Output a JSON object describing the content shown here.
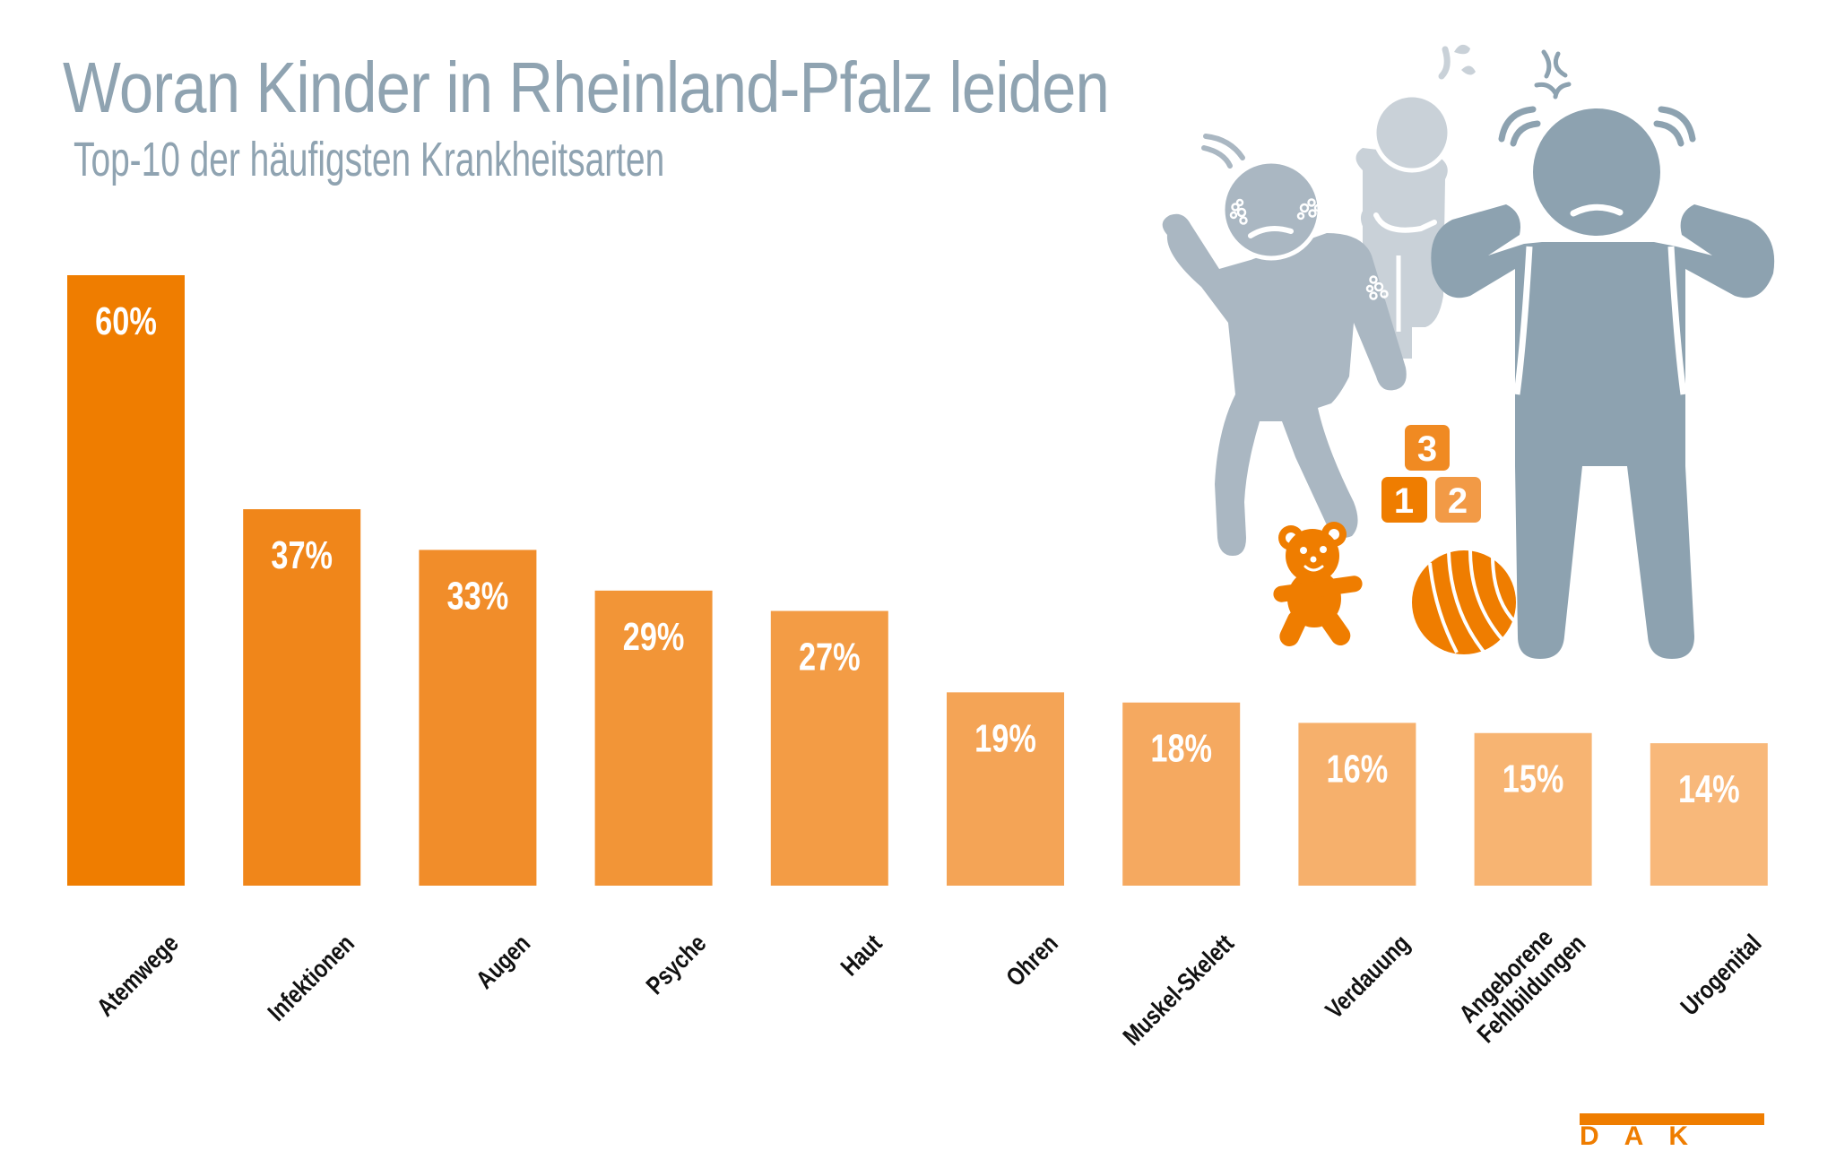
{
  "header": {
    "title": "Woran Kinder in Rheinland-Pfalz leiden",
    "subtitle": "Top-10 der häufigsten Krankheitsarten"
  },
  "chart_data": {
    "type": "bar",
    "title": "Woran Kinder in Rheinland-Pfalz leiden",
    "subtitle": "Top-10 der häufigsten Krankheitsarten",
    "xlabel": "",
    "ylabel": "",
    "ylim": [
      0,
      60
    ],
    "grid": false,
    "legend": "none",
    "categories": [
      "Atemwege",
      "Infektionen",
      "Augen",
      "Psyche",
      "Haut",
      "Ohren",
      "Muskel-Skelett",
      "Verdauung",
      "Angeborene Fehlbildungen",
      "Urogenital"
    ],
    "category_lines": [
      [
        "Atemwege"
      ],
      [
        "Infektionen"
      ],
      [
        "Augen"
      ],
      [
        "Psyche"
      ],
      [
        "Haut"
      ],
      [
        "Ohren"
      ],
      [
        "Muskel-Skelett"
      ],
      [
        "Verdauung"
      ],
      [
        "Angeborene",
        "Fehlbildungen"
      ],
      [
        "Urogenital"
      ]
    ],
    "values": [
      60,
      37,
      33,
      29,
      27,
      19,
      18,
      16,
      15,
      14
    ],
    "value_labels": [
      "60%",
      "37%",
      "33%",
      "29%",
      "27%",
      "19%",
      "18%",
      "16%",
      "15%",
      "14%"
    ],
    "unit": "%",
    "bar_colors": [
      "#ef7d00",
      "#f0861a",
      "#f18d2a",
      "#f29537",
      "#f39c45",
      "#f4a456",
      "#f5a960",
      "#f6b06c",
      "#f7b472",
      "#f8b87a"
    ]
  },
  "illustration": {
    "blocks": [
      "3",
      "1",
      "2"
    ],
    "colors": {
      "figure_front": "#8da2b0",
      "figure_left": "#aab7c2",
      "figure_back": "#c9d1d8",
      "toy_orange": "#ef7d00",
      "block_3": "#f08a22",
      "block_1": "#ef7d00",
      "block_2": "#f29a46"
    }
  },
  "logo": {
    "text": "DAK",
    "color": "#ef7d00"
  }
}
